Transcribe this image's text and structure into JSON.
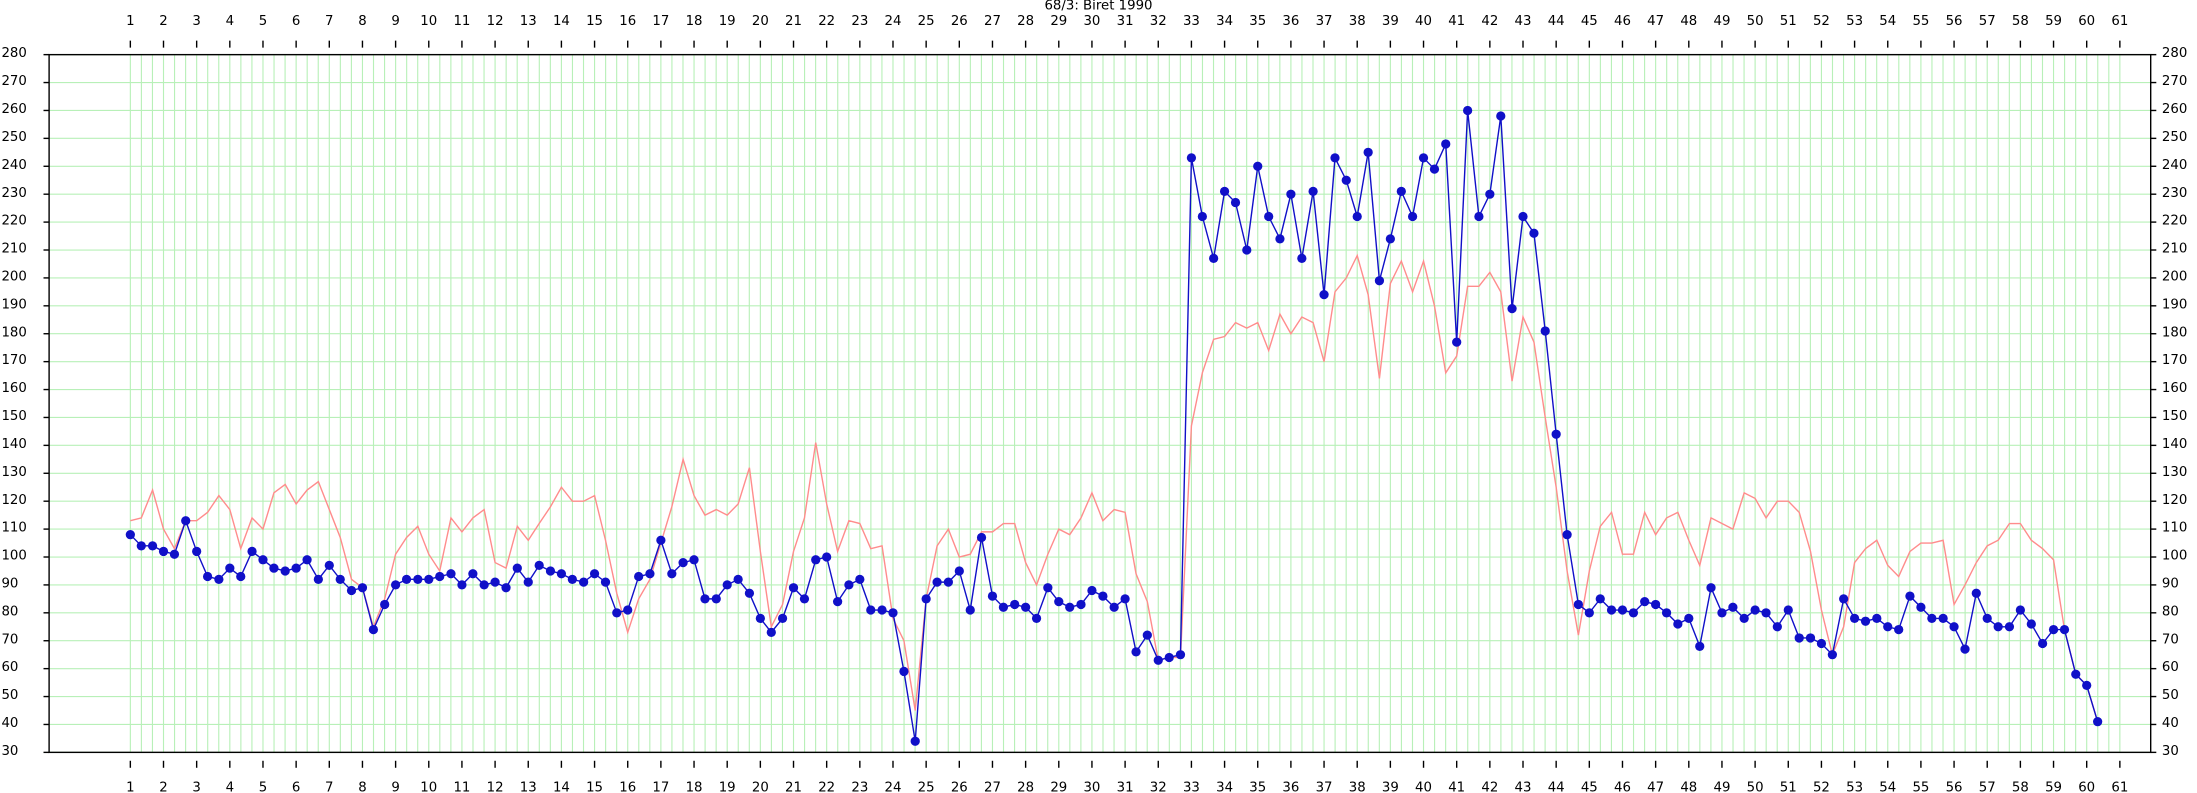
{
  "chart_data": {
    "type": "line",
    "title": "68/3: Biret 1990",
    "x": [
      1,
      1.33,
      1.67,
      2,
      2.33,
      2.67,
      3,
      3.33,
      3.67,
      4,
      4.33,
      4.67,
      5,
      5.33,
      5.67,
      6,
      6.33,
      6.67,
      7,
      7.33,
      7.67,
      8,
      8.33,
      8.67,
      9,
      9.33,
      9.67,
      10,
      10.33,
      10.67,
      11,
      11.33,
      11.67,
      12,
      12.33,
      12.67,
      13,
      13.33,
      13.67,
      14,
      14.33,
      14.67,
      15,
      15.33,
      15.67,
      16,
      16.33,
      16.67,
      17,
      17.33,
      17.67,
      18,
      18.33,
      18.67,
      19,
      19.33,
      19.67,
      20,
      20.33,
      20.67,
      21,
      21.33,
      21.67,
      22,
      22.33,
      22.67,
      23,
      23.33,
      23.67,
      24,
      24.33,
      24.67,
      25,
      25.33,
      25.67,
      26,
      26.33,
      26.67,
      27,
      27.33,
      27.67,
      28,
      28.33,
      28.67,
      29,
      29.33,
      29.67,
      30,
      30.33,
      30.67,
      31,
      31.33,
      31.67,
      32,
      32.33,
      32.67,
      33,
      33.33,
      33.67,
      34,
      34.33,
      34.67,
      35,
      35.33,
      35.67,
      36,
      36.33,
      36.67,
      37,
      37.33,
      37.67,
      38,
      38.33,
      38.67,
      39,
      39.33,
      39.67,
      40,
      40.33,
      40.67,
      41,
      41.33,
      41.67,
      42,
      42.33,
      42.67,
      43,
      43.33,
      43.67,
      44,
      44.33,
      44.67,
      45,
      45.33,
      45.67,
      46,
      46.33,
      46.67,
      47,
      47.33,
      47.67,
      48,
      48.33,
      48.67,
      49,
      49.33,
      49.67,
      50,
      50.33,
      50.67,
      51,
      51.33,
      51.67,
      52,
      52.33,
      52.67,
      53,
      53.33,
      53.67,
      54,
      54.33,
      54.67,
      55,
      55.33,
      55.67,
      56,
      56.33,
      56.67,
      57,
      57.33,
      57.67,
      58,
      58.33,
      58.67,
      59,
      59.33,
      59.67,
      60,
      60.33
    ],
    "series": [
      {
        "color": "#ff8c8c",
        "markers": false,
        "values": [
          113,
          114,
          124,
          110,
          103,
          113,
          113,
          116,
          122,
          117,
          103,
          114,
          110,
          123,
          126,
          119,
          124,
          127,
          117,
          107,
          92,
          89,
          75,
          85,
          101,
          107,
          111,
          101,
          95,
          114,
          109,
          114,
          117,
          98,
          96,
          111,
          106,
          112,
          118,
          125,
          120,
          120,
          122,
          106,
          87,
          73,
          85,
          92,
          105,
          118,
          135,
          122,
          115,
          117,
          115,
          119,
          132,
          102,
          75,
          83,
          102,
          114,
          141,
          119,
          102,
          113,
          112,
          103,
          104,
          78,
          70,
          45,
          85,
          104,
          110,
          100,
          101,
          109,
          109,
          112,
          112,
          98,
          90,
          101,
          110,
          108,
          114,
          123,
          113,
          117,
          116,
          94,
          84,
          63,
          64,
          64,
          147,
          166,
          178,
          179,
          184,
          182,
          184,
          174,
          187,
          180,
          186,
          184,
          170,
          195,
          200,
          208,
          194,
          164,
          198,
          206,
          195,
          206,
          190,
          166,
          172,
          197,
          197,
          202,
          195,
          163,
          186,
          177,
          150,
          125,
          95,
          72,
          95,
          111,
          116,
          101,
          101,
          116,
          108,
          114,
          116,
          106,
          97,
          114,
          112,
          110,
          123,
          121,
          114,
          120,
          120,
          116,
          102,
          81,
          65,
          75,
          98,
          103,
          106,
          97,
          93,
          102,
          105,
          105,
          106,
          83,
          90,
          98,
          104,
          106,
          112,
          112,
          106,
          103,
          99,
          74,
          58,
          54,
          41
        ]
      },
      {
        "color": "#1010c8",
        "markers": true,
        "values": [
          108,
          104,
          104,
          102,
          101,
          113,
          102,
          93,
          92,
          96,
          93,
          102,
          99,
          96,
          95,
          96,
          99,
          92,
          97,
          92,
          88,
          89,
          74,
          83,
          90,
          92,
          92,
          92,
          93,
          94,
          90,
          94,
          90,
          91,
          89,
          96,
          91,
          97,
          95,
          94,
          92,
          91,
          94,
          91,
          80,
          81,
          93,
          94,
          106,
          94,
          98,
          99,
          85,
          85,
          90,
          92,
          87,
          78,
          73,
          78,
          89,
          85,
          99,
          100,
          84,
          90,
          92,
          81,
          81,
          80,
          59,
          34,
          85,
          91,
          91,
          95,
          81,
          107,
          86,
          82,
          83,
          82,
          78,
          89,
          84,
          82,
          83,
          88,
          86,
          82,
          85,
          66,
          72,
          63,
          64,
          65,
          243,
          222,
          207,
          231,
          227,
          210,
          240,
          222,
          214,
          230,
          207,
          231,
          194,
          243,
          235,
          222,
          245,
          199,
          214,
          231,
          222,
          243,
          239,
          248,
          177,
          260,
          222,
          230,
          258,
          189,
          222,
          216,
          181,
          144,
          108,
          83,
          80,
          85,
          81,
          81,
          80,
          84,
          83,
          80,
          76,
          78,
          68,
          89,
          80,
          82,
          78,
          81,
          80,
          75,
          81,
          71,
          71,
          69,
          65,
          85,
          78,
          77,
          78,
          75,
          74,
          86,
          82,
          78,
          78,
          75,
          67,
          87,
          78,
          75,
          75,
          81,
          76,
          69,
          74,
          74,
          58,
          54,
          41
        ]
      }
    ],
    "xlim": [
      -1.45,
      61.93
    ],
    "xticks": [
      1,
      2,
      3,
      4,
      5,
      6,
      7,
      8,
      9,
      10,
      11,
      12,
      13,
      14,
      15,
      16,
      17,
      18,
      19,
      20,
      21,
      22,
      23,
      24,
      25,
      26,
      27,
      28,
      29,
      30,
      31,
      32,
      33,
      34,
      35,
      36,
      37,
      38,
      39,
      40,
      41,
      42,
      43,
      44,
      45,
      46,
      47,
      48,
      49,
      50,
      51,
      52,
      53,
      54,
      55,
      56,
      57,
      58,
      59,
      60,
      61
    ],
    "ylim": [
      30,
      280
    ],
    "yticks": [
      30,
      40,
      50,
      60,
      70,
      80,
      90,
      100,
      110,
      120,
      130,
      140,
      150,
      160,
      170,
      180,
      190,
      200,
      210,
      220,
      230,
      240,
      250,
      260,
      270,
      280
    ],
    "grid": true,
    "grid_color": "#b8f0b8"
  }
}
